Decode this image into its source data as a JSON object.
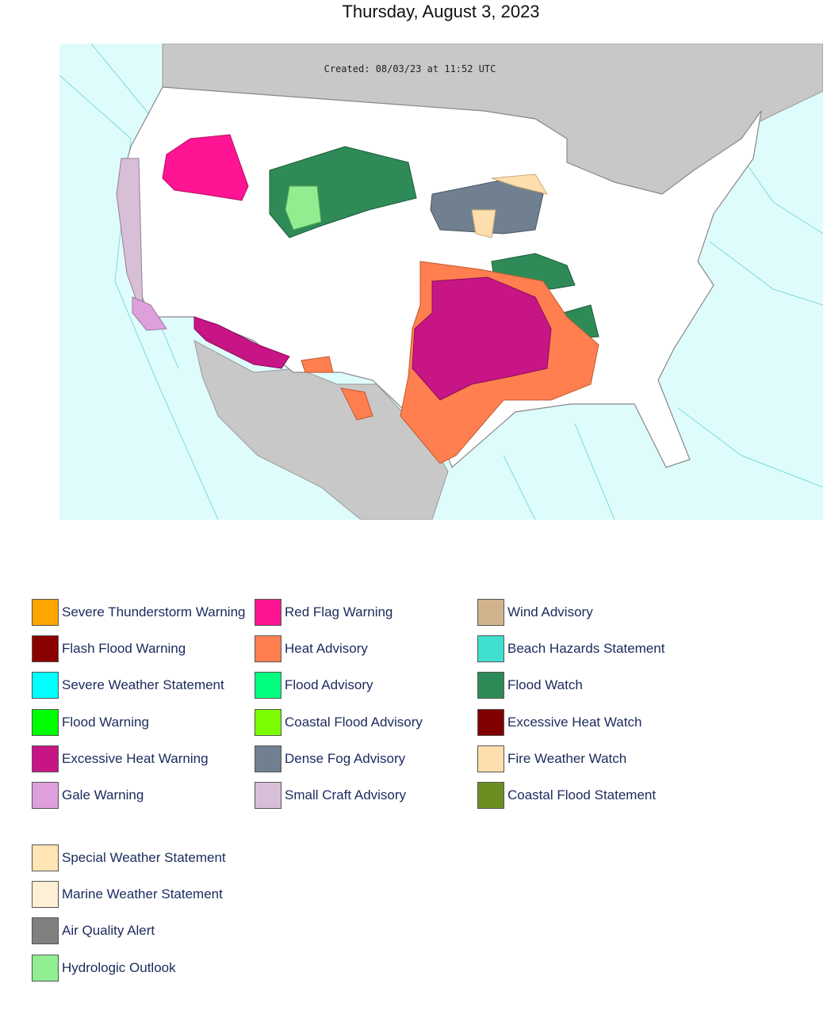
{
  "header": {
    "title": "Thursday, August 3, 2023"
  },
  "map": {
    "created": "Created: 08/03/23 at 11:52 UTC"
  },
  "legend": {
    "items": [
      {
        "label": "Severe Thunderstorm Warning",
        "color": "#ffa500"
      },
      {
        "label": "Flash Flood Warning",
        "color": "#8b0000"
      },
      {
        "label": "Severe Weather Statement",
        "color": "#00ffff"
      },
      {
        "label": "Flood Warning",
        "color": "#00ff00"
      },
      {
        "label": "Excessive Heat Warning",
        "color": "#c71585"
      },
      {
        "label": "Gale Warning",
        "color": "#dda0dd"
      },
      {
        "label": "Red Flag Warning",
        "color": "#ff1493"
      },
      {
        "label": "Heat Advisory",
        "color": "#ff7f50"
      },
      {
        "label": "Flood Advisory",
        "color": "#00ff7f"
      },
      {
        "label": "Coastal Flood Advisory",
        "color": "#7cfc00"
      },
      {
        "label": "Dense Fog Advisory",
        "color": "#708090"
      },
      {
        "label": "Small Craft Advisory",
        "color": "#d8bfd8"
      },
      {
        "label": "Wind Advisory",
        "color": "#d2b48c"
      },
      {
        "label": "Beach Hazards Statement",
        "color": "#40e0d0"
      },
      {
        "label": "Flood Watch",
        "color": "#2e8b57"
      },
      {
        "label": "Excessive Heat Watch",
        "color": "#800000"
      },
      {
        "label": "Fire Weather Watch",
        "color": "#ffdead"
      },
      {
        "label": "Coastal Flood Statement",
        "color": "#6b8e23"
      }
    ],
    "extra": [
      {
        "label": "Special Weather Statement",
        "color": "#ffe4b5"
      },
      {
        "label": "Marine Weather Statement",
        "color": "#ffefd5"
      },
      {
        "label": "Air Quality Alert",
        "color": "#808080"
      },
      {
        "label": "Hydrologic Outlook",
        "color": "#90ee90"
      }
    ]
  }
}
